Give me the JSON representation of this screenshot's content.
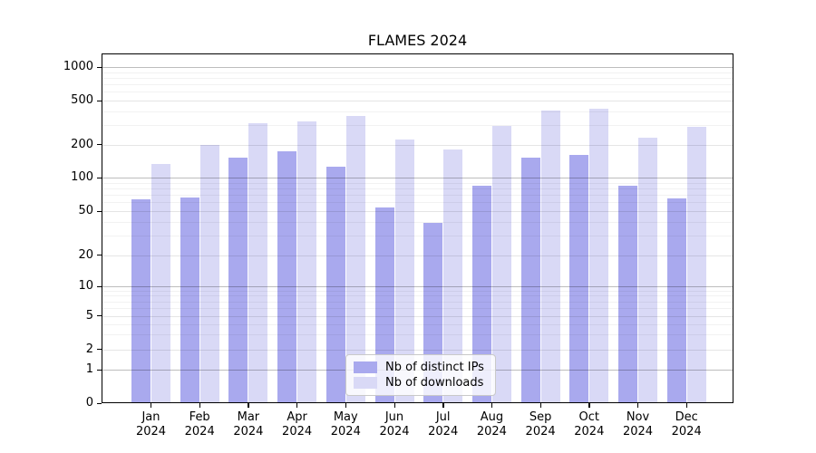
{
  "chart_data": {
    "type": "bar",
    "title": "FLAMES 2024",
    "categories": [
      "Jan 2024",
      "Feb 2024",
      "Mar 2024",
      "Apr 2024",
      "May 2024",
      "Jun 2024",
      "Jul 2024",
      "Aug 2024",
      "Sep 2024",
      "Oct 2024",
      "Nov 2024",
      "Dec 2024"
    ],
    "series": [
      {
        "name": "Nb of distinct IPs",
        "color": "#a9a9ee",
        "values": [
          64,
          66,
          152,
          172,
          126,
          54,
          39,
          84,
          152,
          162,
          85,
          65
        ]
      },
      {
        "name": "Nb of downloads",
        "color": "#d9d9f6",
        "values": [
          134,
          200,
          310,
          325,
          365,
          220,
          181,
          297,
          405,
          420,
          232,
          287
        ]
      }
    ],
    "xlabel": "",
    "ylabel": "",
    "yscale": "symlog",
    "yticks": [
      0,
      1,
      2,
      5,
      10,
      20,
      50,
      100,
      200,
      500,
      1000
    ],
    "ylim": [
      0,
      1300
    ],
    "grid": true,
    "legend_position": "lower center"
  }
}
